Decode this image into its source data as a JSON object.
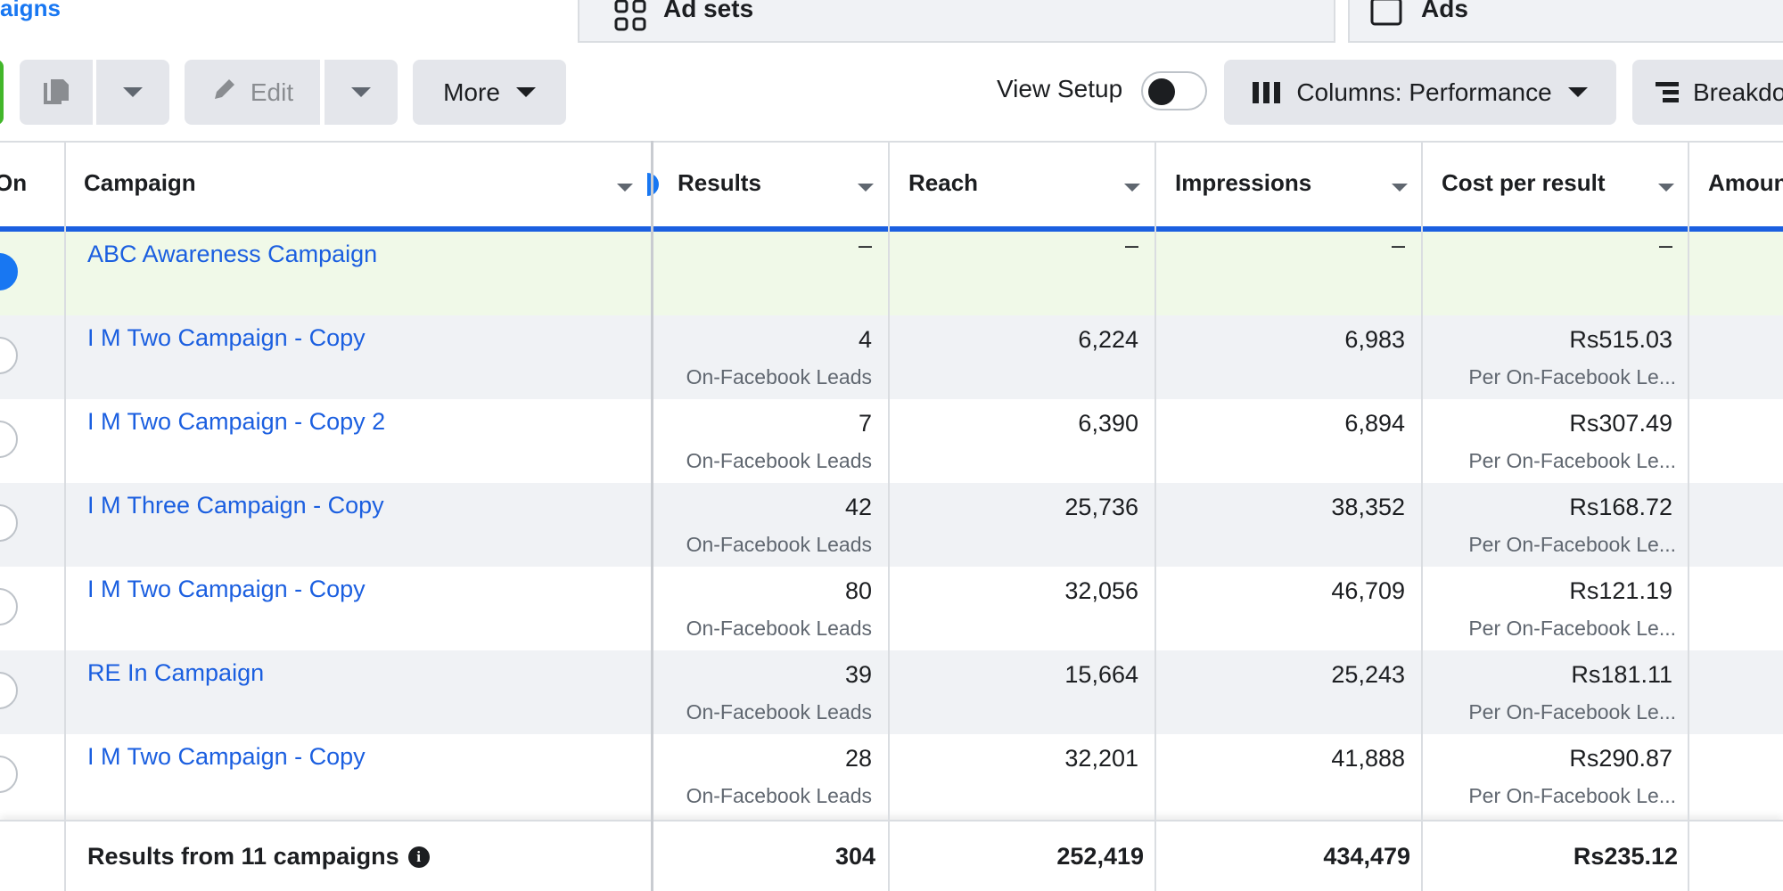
{
  "tabs": {
    "campaigns_partial": "aigns",
    "adsets": "Ad sets",
    "ads": "Ads"
  },
  "toolbar": {
    "edit_label": "Edit",
    "more_label": "More",
    "view_setup_label": "View Setup",
    "view_setup_on": false,
    "columns_label": "Columns: Performance",
    "breakdown_label": "Breakdo"
  },
  "table": {
    "headers": {
      "on": "On",
      "campaign": "Campaign",
      "results": "Results",
      "reach": "Reach",
      "impressions": "Impressions",
      "cost_per_result": "Cost per result",
      "amount": "Amoun"
    },
    "rows": [
      {
        "name": "ABC Awareness Campaign",
        "active": true,
        "results": "–",
        "results_sub": "",
        "reach": "–",
        "impressions": "–",
        "cost": "–",
        "cost_sub": ""
      },
      {
        "name": "I M Two Campaign - Copy",
        "active": false,
        "results": "4",
        "results_sub": "On-Facebook Leads",
        "reach": "6,224",
        "impressions": "6,983",
        "cost": "Rs515.03",
        "cost_sub": "Per On-Facebook Le..."
      },
      {
        "name": "I M Two Campaign - Copy 2",
        "active": false,
        "results": "7",
        "results_sub": "On-Facebook Leads",
        "reach": "6,390",
        "impressions": "6,894",
        "cost": "Rs307.49",
        "cost_sub": "Per On-Facebook Le..."
      },
      {
        "name": "I M Three Campaign - Copy",
        "active": false,
        "results": "42",
        "results_sub": "On-Facebook Leads",
        "reach": "25,736",
        "impressions": "38,352",
        "cost": "Rs168.72",
        "cost_sub": "Per On-Facebook Le..."
      },
      {
        "name": "I M Two Campaign - Copy",
        "active": false,
        "results": "80",
        "results_sub": "On-Facebook Leads",
        "reach": "32,056",
        "impressions": "46,709",
        "cost": "Rs121.19",
        "cost_sub": "Per On-Facebook Le..."
      },
      {
        "name": "RE In Campaign",
        "active": false,
        "results": "39",
        "results_sub": "On-Facebook Leads",
        "reach": "15,664",
        "impressions": "25,243",
        "cost": "Rs181.11",
        "cost_sub": "Per On-Facebook Le..."
      },
      {
        "name": "I M Two Campaign - Copy",
        "active": false,
        "results": "28",
        "results_sub": "On-Facebook Leads",
        "reach": "32,201",
        "impressions": "41,888",
        "cost": "Rs290.87",
        "cost_sub": "Per On-Facebook Le..."
      }
    ],
    "footer": {
      "title": "Results from 11 campaigns",
      "results": "304",
      "reach": "252,419",
      "impressions": "434,479",
      "cost": "Rs235.12"
    }
  },
  "colors": {
    "link_blue": "#1b5fe0",
    "header_accent": "#1b5fe0",
    "highlight_row": "#f0f9e8",
    "alt_row": "#f0f2f5"
  }
}
